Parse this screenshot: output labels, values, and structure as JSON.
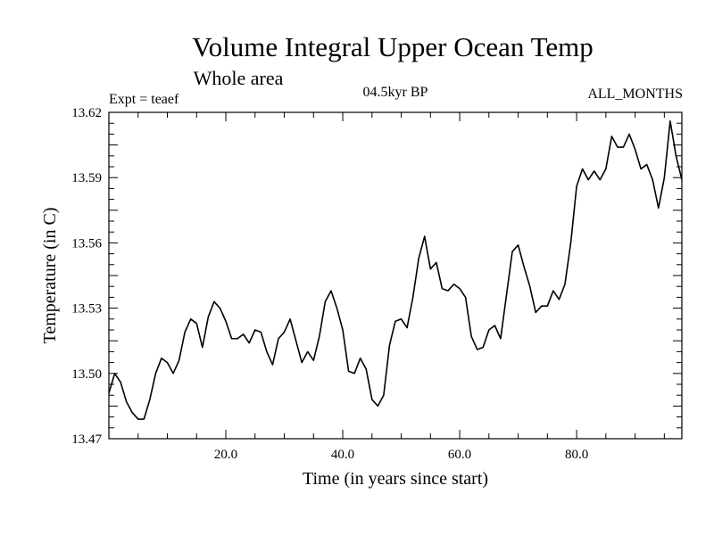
{
  "chart_data": {
    "type": "line",
    "title": "Volume Integral Upper Ocean Temp",
    "subtitle": "Whole area",
    "annotations": {
      "left": "Expt = teaef",
      "center": "04.5kyr BP",
      "right": "ALL_MONTHS"
    },
    "xlabel": "Time (in years since start)",
    "ylabel": "Temperature (in C)",
    "xlim": [
      0,
      98
    ],
    "ylim": [
      13.47,
      13.62
    ],
    "xticks": [
      20,
      40,
      60,
      80
    ],
    "xtick_labels": [
      "20.0",
      "40.0",
      "60.0",
      "80.0"
    ],
    "yticks": [
      13.47,
      13.5,
      13.53,
      13.56,
      13.59,
      13.62
    ],
    "ytick_labels": [
      "13.47",
      "13.50",
      "13.53",
      "13.56",
      "13.59",
      "13.62"
    ],
    "grid": false,
    "series": [
      {
        "name": "temperature",
        "x": [
          0,
          1,
          2,
          3,
          4,
          5,
          6,
          7,
          8,
          9,
          10,
          11,
          12,
          13,
          14,
          15,
          16,
          17,
          18,
          19,
          20,
          21,
          22,
          23,
          24,
          25,
          26,
          27,
          28,
          29,
          30,
          31,
          32,
          33,
          34,
          35,
          36,
          37,
          38,
          39,
          40,
          41,
          42,
          43,
          44,
          45,
          46,
          47,
          48,
          49,
          50,
          51,
          52,
          53,
          54,
          55,
          56,
          57,
          58,
          59,
          60,
          61,
          62,
          63,
          64,
          65,
          66,
          67,
          68,
          69,
          70,
          71,
          72,
          73,
          74,
          75,
          76,
          77,
          78,
          79,
          80,
          81,
          82,
          83,
          84,
          85,
          86,
          87,
          88,
          89,
          90,
          91,
          92,
          93,
          94,
          95,
          96,
          97,
          98
        ],
        "values": [
          13.491,
          13.5,
          13.496,
          13.487,
          13.482,
          13.479,
          13.479,
          13.488,
          13.5,
          13.507,
          13.505,
          13.5,
          13.506,
          13.519,
          13.525,
          13.523,
          13.512,
          13.526,
          13.533,
          13.53,
          13.524,
          13.516,
          13.516,
          13.518,
          13.514,
          13.52,
          13.519,
          13.51,
          13.504,
          13.516,
          13.519,
          13.525,
          13.515,
          13.505,
          13.51,
          13.506,
          13.517,
          13.533,
          13.538,
          13.53,
          13.52,
          13.501,
          13.5,
          13.507,
          13.502,
          13.488,
          13.485,
          13.49,
          13.513,
          13.524,
          13.525,
          13.521,
          13.535,
          13.553,
          13.563,
          13.548,
          13.551,
          13.539,
          13.538,
          13.541,
          13.539,
          13.535,
          13.517,
          13.511,
          13.512,
          13.52,
          13.522,
          13.516,
          13.536,
          13.556,
          13.559,
          13.549,
          13.54,
          13.528,
          13.531,
          13.531,
          13.538,
          13.534,
          13.541,
          13.56,
          13.586,
          13.594,
          13.589,
          13.593,
          13.589,
          13.594,
          13.609,
          13.604,
          13.604,
          13.61,
          13.603,
          13.594,
          13.596,
          13.589,
          13.576,
          13.59,
          13.616,
          13.6,
          13.589
        ]
      }
    ]
  }
}
